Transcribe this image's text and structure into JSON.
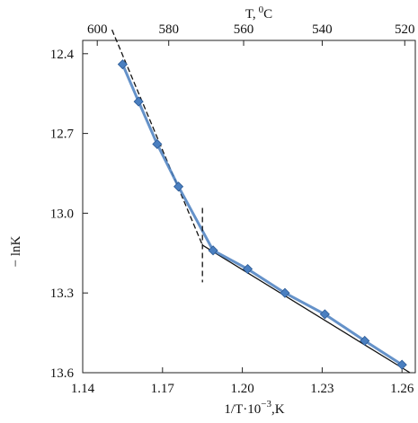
{
  "chart_data": {
    "type": "line",
    "xlabel": "1/T·10",
    "xlabel_exponent": "−3",
    "xlabel_unit": ",K",
    "top_xlabel": "T,",
    "top_xlabel_superscript": "0",
    "top_xlabel_unit": "C",
    "ylabel": "− lnK",
    "xlim": [
      1.14,
      1.265
    ],
    "ylim": [
      12.35,
      13.6
    ],
    "y_inverted": true,
    "x_ticks": [
      1.14,
      1.17,
      1.2,
      1.23,
      1.26
    ],
    "x_tick_labels": [
      "1.14",
      "1.17",
      "1.20",
      "1.23",
      "1.26"
    ],
    "y_ticks": [
      12.4,
      12.7,
      13.0,
      13.3,
      13.6
    ],
    "y_tick_labels": [
      "12.4",
      "12.7",
      "13.0",
      "13.3",
      "13.6"
    ],
    "top_ticks_celsius": [
      600,
      580,
      560,
      540,
      520
    ],
    "top_tick_labels": [
      "600",
      "580",
      "560",
      "540",
      "520"
    ],
    "grid": false,
    "legend": "none",
    "series": [
      {
        "x": [
          1.155,
          1.161,
          1.168,
          1.176,
          1.189,
          1.202,
          1.216,
          1.231,
          1.246,
          1.26
        ],
        "y": [
          12.44,
          12.58,
          12.74,
          12.9,
          13.14,
          13.21,
          13.3,
          13.38,
          13.48,
          13.57
        ],
        "color": "#4a7fc0"
      }
    ],
    "fit_lines": [
      {
        "x": [
          1.151,
          1.185
        ],
        "y": [
          12.31,
          13.12
        ],
        "style": "dashed"
      },
      {
        "x": [
          1.185,
          1.263
        ],
        "y": [
          13.12,
          13.6
        ],
        "style": "solid"
      }
    ],
    "breakpoint_marker": {
      "x": 1.185,
      "y_range": [
        12.98,
        13.26
      ]
    },
    "colors": {
      "series": "#4a7fc0",
      "fit": "#111111",
      "axis": "#222222"
    }
  }
}
